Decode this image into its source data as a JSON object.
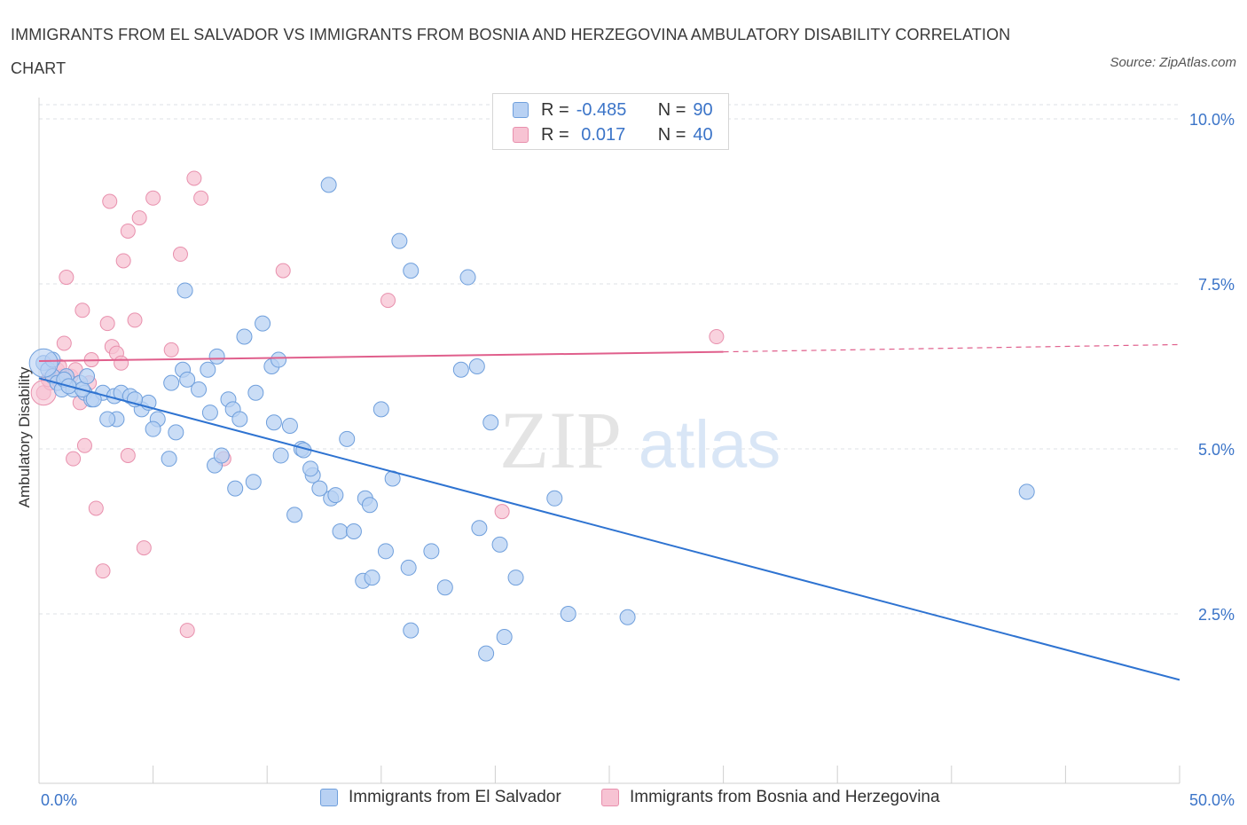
{
  "title": "IMMIGRANTS FROM EL SALVADOR VS IMMIGRANTS FROM BOSNIA AND HERZEGOVINA AMBULATORY DISABILITY CORRELATION CHART",
  "source": "Source: ZipAtlas.com",
  "watermark": {
    "zip": "ZIP",
    "atlas": "atlas"
  },
  "colors": {
    "blue_fill": "#b8d1f3",
    "blue_stroke": "#6f9fdc",
    "blue_line": "#2e73d1",
    "pink_fill": "#f7c3d3",
    "pink_stroke": "#e890ad",
    "pink_line": "#e05f8c",
    "axis_text": "#3b74c8",
    "grid": "#dde1e6"
  },
  "stats": {
    "row1": {
      "r_label": "R =",
      "r_value": "-0.485",
      "n_label": "N =",
      "n_value": "90"
    },
    "row2": {
      "r_label": "R =",
      "r_value": " 0.017",
      "n_label": "N =",
      "n_value": "40"
    }
  },
  "legend": {
    "series1": "Immigrants from El Salvador",
    "series2": "Immigrants from Bosnia and Herzegovina"
  },
  "chart_data": {
    "type": "scatter",
    "ylabel": "Ambulatory Disability",
    "xlim": [
      0,
      50
    ],
    "ylim": [
      0,
      10.5
    ],
    "x_tick_labels": [
      "0.0%",
      "50.0%"
    ],
    "y_ticks": [
      2.5,
      5.0,
      7.5,
      10.0
    ],
    "y_tick_labels": [
      "2.5%",
      "5.0%",
      "7.5%",
      "10.0%"
    ],
    "grid": true,
    "series": [
      {
        "name": "Immigrants from El Salvador",
        "points": [
          [
            0.2,
            6.3
          ],
          [
            0.4,
            6.2
          ],
          [
            0.6,
            6.1
          ],
          [
            0.8,
            6.0
          ],
          [
            1.0,
            5.9
          ],
          [
            1.2,
            6.1
          ],
          [
            1.5,
            5.9
          ],
          [
            1.8,
            6.0
          ],
          [
            2.0,
            5.85
          ],
          [
            2.3,
            5.75
          ],
          [
            2.8,
            5.85
          ],
          [
            3.3,
            5.8
          ],
          [
            3.6,
            5.85
          ],
          [
            4.0,
            5.8
          ],
          [
            4.5,
            5.6
          ],
          [
            4.8,
            5.7
          ],
          [
            5.2,
            5.45
          ],
          [
            5.0,
            5.3
          ],
          [
            5.8,
            6.0
          ],
          [
            6.3,
            6.2
          ],
          [
            6.5,
            6.05
          ],
          [
            7.0,
            5.9
          ],
          [
            7.4,
            6.2
          ],
          [
            7.5,
            5.55
          ],
          [
            7.8,
            6.4
          ],
          [
            8.3,
            5.75
          ],
          [
            8.5,
            5.6
          ],
          [
            8.8,
            5.45
          ],
          [
            9.0,
            6.7
          ],
          [
            9.5,
            5.85
          ],
          [
            9.8,
            6.9
          ],
          [
            10.2,
            6.25
          ],
          [
            10.5,
            6.35
          ],
          [
            10.3,
            5.4
          ],
          [
            11.0,
            5.35
          ],
          [
            11.5,
            5.0
          ],
          [
            11.6,
            4.98
          ],
          [
            12.0,
            4.6
          ],
          [
            12.3,
            4.4
          ],
          [
            11.2,
            4.0
          ],
          [
            12.8,
            4.25
          ],
          [
            13.2,
            3.75
          ],
          [
            13.8,
            3.75
          ],
          [
            14.3,
            4.25
          ],
          [
            14.5,
            4.15
          ],
          [
            15.0,
            5.6
          ],
          [
            13.5,
            5.15
          ],
          [
            15.5,
            4.55
          ],
          [
            14.2,
            3.0
          ],
          [
            14.6,
            3.05
          ],
          [
            15.2,
            3.45
          ],
          [
            16.2,
            3.2
          ],
          [
            16.3,
            2.25
          ],
          [
            17.2,
            3.45
          ],
          [
            17.8,
            2.9
          ],
          [
            18.5,
            6.2
          ],
          [
            19.2,
            6.25
          ],
          [
            19.3,
            3.8
          ],
          [
            19.6,
            1.9
          ],
          [
            20.2,
            3.55
          ],
          [
            20.4,
            2.15
          ],
          [
            20.9,
            3.05
          ],
          [
            19.8,
            5.4
          ],
          [
            18.8,
            7.6
          ],
          [
            16.3,
            7.7
          ],
          [
            15.8,
            8.15
          ],
          [
            12.7,
            9.0
          ],
          [
            22.6,
            4.25
          ],
          [
            23.2,
            2.5
          ],
          [
            25.8,
            2.45
          ],
          [
            43.3,
            4.35
          ],
          [
            6.4,
            7.4
          ],
          [
            1.9,
            5.9
          ],
          [
            2.4,
            5.75
          ],
          [
            3.4,
            5.45
          ],
          [
            5.7,
            4.85
          ],
          [
            7.7,
            4.75
          ],
          [
            8.6,
            4.4
          ],
          [
            9.4,
            4.5
          ],
          [
            10.6,
            4.9
          ],
          [
            11.9,
            4.7
          ],
          [
            13.0,
            4.3
          ],
          [
            1.1,
            6.05
          ],
          [
            2.1,
            6.1
          ],
          [
            4.2,
            5.75
          ],
          [
            6.0,
            5.25
          ],
          [
            8.0,
            4.9
          ],
          [
            3.0,
            5.45
          ],
          [
            0.6,
            6.35
          ],
          [
            1.3,
            5.95
          ]
        ]
      },
      {
        "name": "Immigrants from Bosnia and Herzegovina",
        "points": [
          [
            0.2,
            5.85
          ],
          [
            0.5,
            6.0
          ],
          [
            0.8,
            6.2
          ],
          [
            1.0,
            6.1
          ],
          [
            1.1,
            6.6
          ],
          [
            1.4,
            6.1
          ],
          [
            1.6,
            6.2
          ],
          [
            1.8,
            5.7
          ],
          [
            2.0,
            5.05
          ],
          [
            2.3,
            6.35
          ],
          [
            2.5,
            4.1
          ],
          [
            2.8,
            3.15
          ],
          [
            3.0,
            6.9
          ],
          [
            3.2,
            6.55
          ],
          [
            3.4,
            6.45
          ],
          [
            3.6,
            6.3
          ],
          [
            3.9,
            4.9
          ],
          [
            4.2,
            6.95
          ],
          [
            4.6,
            3.5
          ],
          [
            5.0,
            8.8
          ],
          [
            5.8,
            6.5
          ],
          [
            6.2,
            7.95
          ],
          [
            6.5,
            2.25
          ],
          [
            6.8,
            9.1
          ],
          [
            7.1,
            8.8
          ],
          [
            8.1,
            4.85
          ],
          [
            10.7,
            7.7
          ],
          [
            15.3,
            7.25
          ],
          [
            20.3,
            4.05
          ],
          [
            29.7,
            6.7
          ],
          [
            1.2,
            7.6
          ],
          [
            1.9,
            7.1
          ],
          [
            3.1,
            8.75
          ],
          [
            3.7,
            7.85
          ],
          [
            4.4,
            8.5
          ],
          [
            3.9,
            8.3
          ],
          [
            1.5,
            4.85
          ],
          [
            0.4,
            6.05
          ],
          [
            0.9,
            6.25
          ],
          [
            2.2,
            6.0
          ]
        ]
      }
    ],
    "trendlines": [
      {
        "series": "Immigrants from El Salvador",
        "x": [
          0,
          50
        ],
        "y": [
          6.07,
          1.5
        ]
      },
      {
        "series": "Immigrants from Bosnia and Herzegovina",
        "x": [
          0,
          30
        ],
        "y": [
          6.33,
          6.47
        ],
        "dashed_extension": [
          30,
          50
        ],
        "dashed_y": [
          6.47,
          6.58
        ]
      }
    ]
  }
}
